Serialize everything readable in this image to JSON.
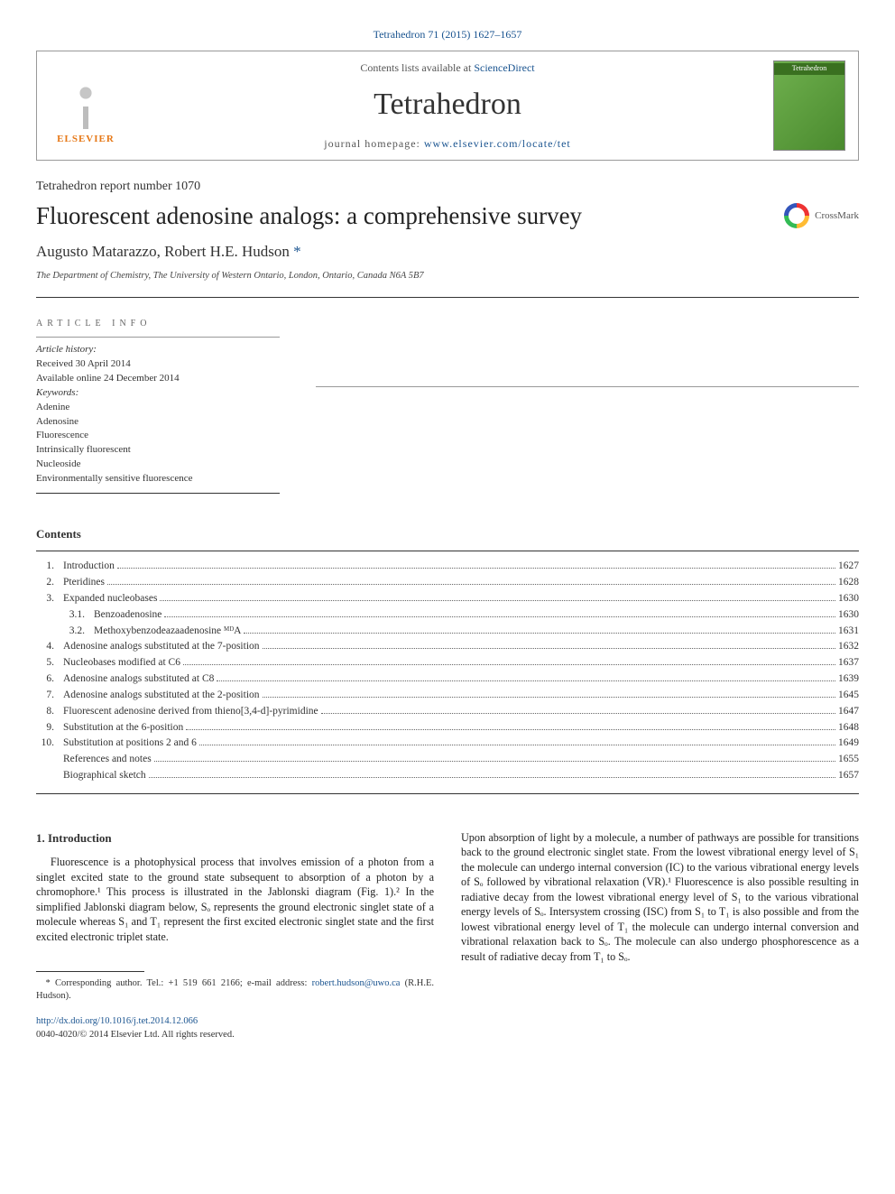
{
  "journal_ref": "Tetrahedron 71 (2015) 1627–1657",
  "header": {
    "elsevier": "ELSEVIER",
    "contents_lists_prefix": "Contents lists available at ",
    "contents_lists_link": "ScienceDirect",
    "journal_name": "Tetrahedron",
    "homepage_prefix": "journal homepage: ",
    "homepage_link": "www.elsevier.com/locate/tet",
    "cover_label": "Tetrahedron"
  },
  "report_line": "Tetrahedron report number 1070",
  "title": "Fluorescent adenosine analogs: a comprehensive survey",
  "crossmark": "CrossMark",
  "authors_line": "Augusto Matarazzo, Robert H.E. Hudson",
  "corr_marker": "*",
  "affiliation": "The Department of Chemistry, The University of Western Ontario, London, Ontario, Canada N6A 5B7",
  "article_info_label": "article info",
  "history": {
    "label": "Article history:",
    "received": "Received 30 April 2014",
    "online": "Available online 24 December 2014"
  },
  "keywords": {
    "label": "Keywords:",
    "items": [
      "Adenine",
      "Adenosine",
      "Fluorescence",
      "Intrinsically fluorescent",
      "Nucleoside",
      "Environmentally sensitive fluorescence"
    ]
  },
  "contents_heading": "Contents",
  "toc": [
    {
      "num": "1.",
      "title": "Introduction",
      "page": "1627",
      "indent": 0
    },
    {
      "num": "2.",
      "title": "Pteridines",
      "page": "1628",
      "indent": 0
    },
    {
      "num": "3.",
      "title": "Expanded nucleobases",
      "page": "1630",
      "indent": 0
    },
    {
      "num": "3.1.",
      "title": "Benzoadenosine",
      "page": "1630",
      "indent": 1
    },
    {
      "num": "3.2.",
      "title": "Methoxybenzodeazaadenosine ᴹᴰA",
      "page": "1631",
      "indent": 1
    },
    {
      "num": "4.",
      "title": "Adenosine analogs substituted at the 7-position",
      "page": "1632",
      "indent": 0
    },
    {
      "num": "5.",
      "title": "Nucleobases modified at C6",
      "page": "1637",
      "indent": 0
    },
    {
      "num": "6.",
      "title": "Adenosine analogs substituted at C8",
      "page": "1639",
      "indent": 0
    },
    {
      "num": "7.",
      "title": "Adenosine analogs substituted at the 2-position",
      "page": "1645",
      "indent": 0
    },
    {
      "num": "8.",
      "title": "Fluorescent adenosine derived from thieno[3,4-d]-pyrimidine",
      "page": "1647",
      "indent": 0
    },
    {
      "num": "9.",
      "title": "Substitution at the 6-position",
      "page": "1648",
      "indent": 0
    },
    {
      "num": "10.",
      "title": "Substitution at positions 2 and 6",
      "page": "1649",
      "indent": 0
    },
    {
      "num": "",
      "title": "References and notes",
      "page": "1655",
      "indent": 0
    },
    {
      "num": "",
      "title": "Biographical sketch",
      "page": "1657",
      "indent": 0
    }
  ],
  "section1": {
    "heading": "1. Introduction",
    "col1": "Fluorescence is a photophysical process that involves emission of a photon from a singlet excited state to the ground state subsequent to absorption of a photon by a chromophore.¹ This process is illustrated in the Jablonski diagram (Fig. 1).² In the simplified Jablonski diagram below, Sₒ represents the ground electronic singlet state of a molecule whereas S₁ and T₁ represent the first excited electronic singlet state and the first excited electronic triplet state.",
    "col2": "Upon absorption of light by a molecule, a number of pathways are possible for transitions back to the ground electronic singlet state. From the lowest vibrational energy level of S₁ the molecule can undergo internal conversion (IC) to the various vibrational energy levels of Sₒ followed by vibrational relaxation (VR).¹ Fluorescence is also possible resulting in radiative decay from the lowest vibrational energy level of S₁ to the various vibrational energy levels of Sₒ. Intersystem crossing (ISC) from S₁ to T₁ is also possible and from the lowest vibrational energy level of T₁ the molecule can undergo internal conversion and vibrational relaxation back to Sₒ. The molecule can also undergo phosphorescence as a result of radiative decay from T₁ to Sₒ."
  },
  "footnote": {
    "marker": "*",
    "text_prefix": " Corresponding author. Tel.: +1 519 661 2166; e-mail address: ",
    "email": "robert.hudson@uwo.ca",
    "text_suffix": " (R.H.E. Hudson)."
  },
  "doi": {
    "link": "http://dx.doi.org/10.1016/j.tet.2014.12.066",
    "copyright": "0040-4020/© 2014 Elsevier Ltd. All rights reserved."
  },
  "colors": {
    "link": "#1a5490",
    "elsevier_orange": "#e67817",
    "cover_green1": "#6fb04e",
    "cover_green2": "#4a8a2e"
  }
}
